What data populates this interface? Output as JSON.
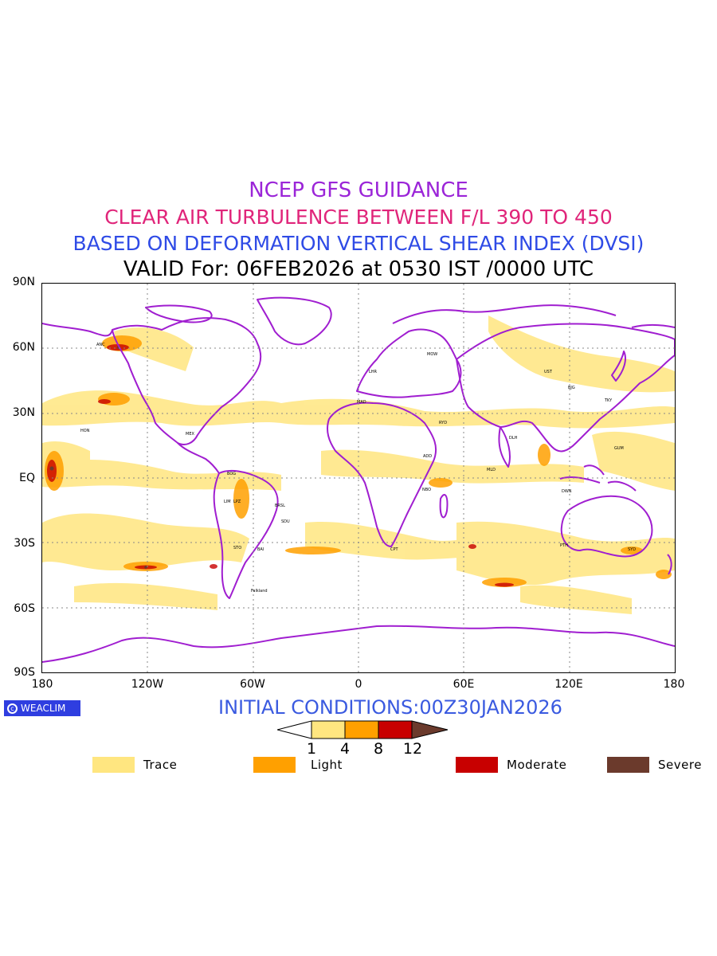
{
  "titles": {
    "line1": "NCEP GFS GUIDANCE",
    "line2": "CLEAR AIR TURBULENCE BETWEEN F/L 390 TO 450",
    "line3": "BASED ON DEFORMATION VERTICAL SHEAR INDEX (DVSI)",
    "line4": "VALID For: 06FEB2026 at 0530 IST /0000 UTC"
  },
  "colors": {
    "line1": "#9b25d8",
    "line2": "#e0257a",
    "line3": "#2f4be6",
    "line4": "#000000",
    "coast": "#a01ed0",
    "trace": "#ffe680",
    "light": "#ffa000",
    "moderate": "#c80000",
    "severe": "#6b3a2c",
    "grid": "#888888"
  },
  "axes": {
    "lat_labels": [
      "90N",
      "60N",
      "30N",
      "EQ",
      "30S",
      "60S",
      "90S"
    ],
    "lon_labels": [
      "180",
      "120W",
      "60W",
      "0",
      "60E",
      "120E",
      "180"
    ]
  },
  "logo": {
    "text": "WEACLIM"
  },
  "initial_conditions": "INITIAL CONDITIONS:00Z30JAN2026",
  "colorbar": {
    "ticks": [
      "1",
      "4",
      "8",
      "12"
    ]
  },
  "legend": [
    {
      "label": "Trace",
      "color": "#ffe680"
    },
    {
      "label": "Light",
      "color": "#ffa000"
    },
    {
      "label": "Moderate",
      "color": "#c80000"
    },
    {
      "label": "Severe",
      "color": "#6b3a2c"
    }
  ],
  "stations": [
    "ANC",
    "HON",
    "MEX",
    "BOG",
    "LIM",
    "LPZ",
    "BRSL",
    "SDU",
    "STO",
    "BAI",
    "Falkland",
    "CPT",
    "NBO",
    "ADD",
    "RYD",
    "MOW",
    "UST",
    "BJG",
    "TKY",
    "GUM",
    "DLH",
    "MLD",
    "SYD",
    "PTH",
    "DWN",
    "LHR",
    "MAD"
  ]
}
